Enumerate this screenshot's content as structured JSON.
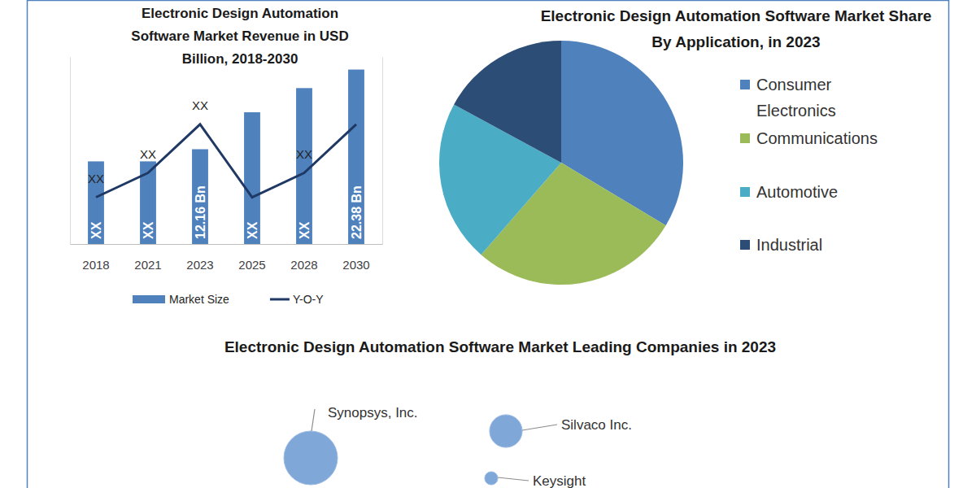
{
  "chart_data": [
    {
      "type": "bar",
      "title": "Electronic Design Automation Software Market Revenue in USD Billion, 2018-2030",
      "categories": [
        "2018",
        "2021",
        "2023",
        "2025",
        "2028",
        "2030"
      ],
      "series": [
        {
          "name": "Market Size",
          "type": "bar",
          "color": "#4f81bd",
          "values": [
            10.6,
            10.6,
            12.16,
            16.9,
            20.0,
            22.38
          ],
          "value_labels": [
            "XX",
            "XX",
            "12.16 Bn",
            "XX",
            "XX",
            "22.38 Bn"
          ]
        },
        {
          "name": "Y-O-Y",
          "type": "line",
          "axis": "y2",
          "color": "#1f3864",
          "values": [
            2.5,
            3.8,
            6.4,
            2.5,
            3.8,
            6.4
          ],
          "value_labels": [
            "XX",
            "XX",
            "XX",
            null,
            "XX",
            null
          ]
        }
      ],
      "ylim": [
        0,
        24
      ],
      "y2lim": [
        0,
        10
      ],
      "data_labels": true,
      "tick_labels": "x",
      "legend": "bottom"
    },
    {
      "type": "pie",
      "title": "Electronic Design Automation Software Market Share By Application, in 2023",
      "categories": [
        "Consumer Electronics",
        "Communications",
        "Automotive",
        "Industrial"
      ],
      "values": [
        33.6,
        27.8,
        21.5,
        17.1
      ],
      "colors": [
        "#4f81bd",
        "#9bbb59",
        "#4bacc6",
        "#2c4d75"
      ],
      "data_labels": false,
      "legend": "right"
    },
    {
      "type": "bubble",
      "title": "Electronic Design Automation Software Market Leading Companies in 2023",
      "categories": [
        "Synopsys, Inc.",
        "Silvaco Inc.",
        "Keysight"
      ],
      "sizes": [
        100,
        37,
        6
      ],
      "color": "#7fa7d8"
    }
  ]
}
